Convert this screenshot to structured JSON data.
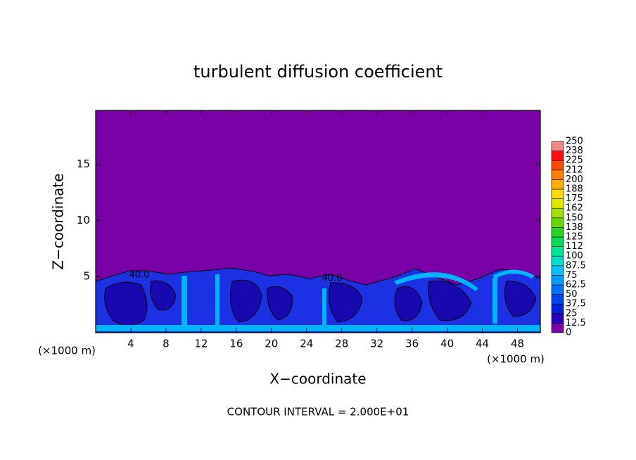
{
  "chart_data": {
    "type": "contour",
    "title": "turbulent diffusion coefficient",
    "x_label": "X−coordinate",
    "y_label": "Z−coordinate",
    "x_unit": "(×1000 m)",
    "y_unit": "(×1000 m)",
    "footnote": "CONTOUR INTERVAL = 2.000E+01",
    "xlim": [
      0,
      50.6
    ],
    "ylim": [
      0,
      19.8
    ],
    "xticks": [
      4,
      8,
      12,
      16,
      20,
      24,
      28,
      32,
      36,
      40,
      44,
      48
    ],
    "yticks": [
      5,
      10,
      15
    ],
    "annotations": [
      "40.0",
      "40.0"
    ],
    "colorbar": {
      "levels": [
        0,
        12.5,
        25,
        37.5,
        50,
        62.5,
        75,
        87.5,
        100,
        {
          "value": 112.5,
          "label": "112"
        },
        125,
        {
          "value": 137.5,
          "label": "138"
        },
        150,
        {
          "value": 162.5,
          "label": "162"
        },
        175,
        {
          "value": 187.5,
          "label": "188"
        },
        200,
        {
          "value": 212.5,
          "label": "212"
        },
        225,
        {
          "value": 237.5,
          "label": "238"
        },
        250
      ],
      "colors": [
        "#7a00a8",
        "#2800c8",
        "#0020dc",
        "#0044f0",
        "#0070ff",
        "#009cff",
        "#00c4f4",
        "#00e0cc",
        "#00e494",
        "#00dc58",
        "#28d420",
        "#68d800",
        "#a4e000",
        "#e0e800",
        "#ffdc00",
        "#ffb000",
        "#ff8000",
        "#ff4800",
        "#ff1010",
        "#f08888"
      ]
    }
  }
}
